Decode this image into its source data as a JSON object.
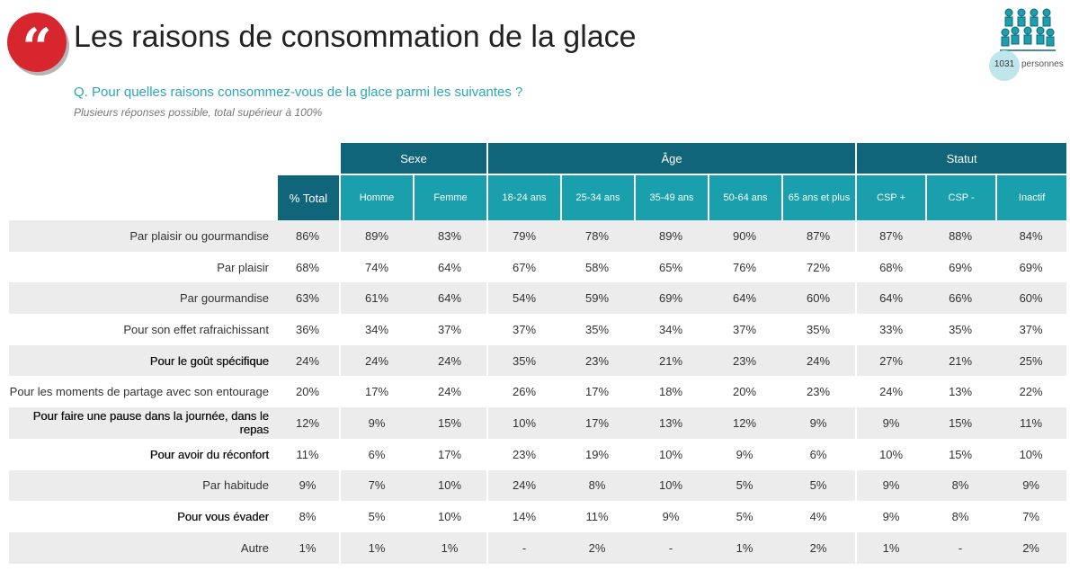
{
  "header": {
    "title": "Les raisons de consommation de la glace",
    "question": "Q. Pour quelles raisons consommez-vous de la glace parmi les suivantes ?",
    "note": "Plusieurs réponses possible, total supérieur à 100%",
    "sample_count": "1031",
    "sample_label": "personnes",
    "icons": {
      "quote": "quote-icon",
      "people": "people-group-icon"
    },
    "colors": {
      "accent_red": "#d8262e",
      "dark_teal": "#10657a",
      "teal": "#1aa0ad",
      "question": "#2aa8b8"
    }
  },
  "table": {
    "groups": [
      "Sexe",
      "Âge",
      "Statut"
    ],
    "columns": [
      "% Total",
      "Homme",
      "Femme",
      "18-24 ans",
      "25-34 ans",
      "35-49 ans",
      "50-64 ans",
      "65 ans et plus",
      "CSP +",
      "CSP -",
      "Inactif"
    ],
    "rows": [
      {
        "label": "Par plaisir ou gourmandise",
        "values": [
          "86%",
          "89%",
          "83%",
          "79%",
          "78%",
          "89%",
          "90%",
          "87%",
          "87%",
          "88%",
          "84%"
        ]
      },
      {
        "label": "Par plaisir",
        "values": [
          "68%",
          "74%",
          "64%",
          "67%",
          "58%",
          "65%",
          "76%",
          "72%",
          "68%",
          "69%",
          "69%"
        ]
      },
      {
        "label": "Par gourmandise",
        "values": [
          "63%",
          "61%",
          "64%",
          "54%",
          "59%",
          "69%",
          "64%",
          "60%",
          "64%",
          "66%",
          "60%"
        ]
      },
      {
        "label": "Pour son effet rafraichissant",
        "values": [
          "36%",
          "34%",
          "37%",
          "37%",
          "35%",
          "34%",
          "37%",
          "35%",
          "33%",
          "35%",
          "37%"
        ]
      },
      {
        "label": "Pour le goût spécifique",
        "values": [
          "24%",
          "24%",
          "24%",
          "35%",
          "23%",
          "21%",
          "23%",
          "24%",
          "27%",
          "21%",
          "25%"
        ]
      },
      {
        "label": "Pour les moments de partage avec son entourage",
        "values": [
          "20%",
          "17%",
          "24%",
          "26%",
          "17%",
          "18%",
          "20%",
          "23%",
          "24%",
          "13%",
          "22%"
        ]
      },
      {
        "label": "Pour faire une pause dans la journée, dans le repas",
        "values": [
          "12%",
          "9%",
          "15%",
          "10%",
          "17%",
          "13%",
          "12%",
          "9%",
          "9%",
          "15%",
          "11%"
        ]
      },
      {
        "label": "Pour avoir du réconfort",
        "values": [
          "11%",
          "6%",
          "17%",
          "23%",
          "19%",
          "10%",
          "9%",
          "6%",
          "10%",
          "15%",
          "10%"
        ]
      },
      {
        "label": "Par habitude",
        "values": [
          "9%",
          "7%",
          "10%",
          "24%",
          "8%",
          "10%",
          "5%",
          "5%",
          "9%",
          "8%",
          "9%"
        ]
      },
      {
        "label": "Pour vous évader",
        "values": [
          "8%",
          "5%",
          "10%",
          "14%",
          "11%",
          "9%",
          "5%",
          "4%",
          "9%",
          "8%",
          "7%"
        ]
      },
      {
        "label": "Autre",
        "values": [
          "1%",
          "1%",
          "1%",
          "-",
          "2%",
          "-",
          "1%",
          "2%",
          "1%",
          "-",
          "2%"
        ]
      }
    ]
  }
}
